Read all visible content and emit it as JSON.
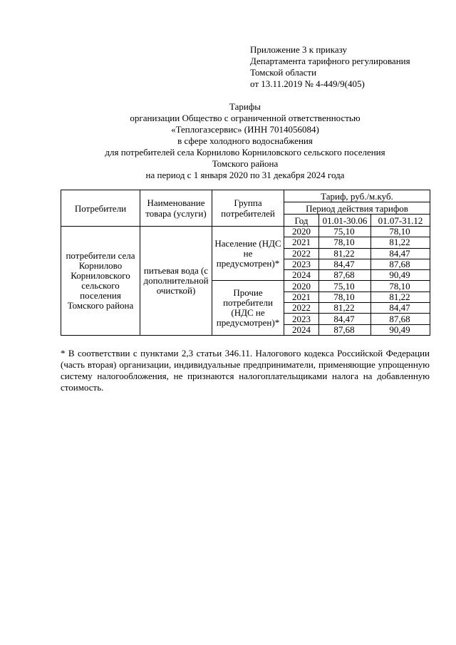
{
  "appendix": [
    "Приложение 3 к приказу",
    "Департамента тарифного регулирования",
    "Томской области",
    "от 13.11.2019 № 4-449/9(405)"
  ],
  "title": [
    "Тарифы",
    "организации Общество с ограниченной ответственностью",
    "«Теплогазсервис» (ИНН 7014056084)",
    "в сфере холодного водоснабжения",
    "для потребителей села Корнилово Корниловского сельского поселения",
    "Томского района",
    "на период с 1 января 2020 по 31 декабря 2024 года"
  ],
  "table": {
    "headers": {
      "consumers": "Потребители",
      "product": "Наименование товара (услуги)",
      "group": "Группа потребителей",
      "tariff": "Тариф, руб./м.куб.",
      "period": "Период действия тарифов",
      "year": "Год",
      "h1": "01.01-30.06",
      "h2": "01.07-31.12"
    },
    "consumers": "потребители села Корнилово Корниловского сельского поселения Томского района",
    "product": "питьевая вода (с дополнительной очисткой)",
    "groups": [
      {
        "name": "Население (НДС не предусмотрен)*",
        "rows": [
          [
            "2020",
            "75,10",
            "78,10"
          ],
          [
            "2021",
            "78,10",
            "81,22"
          ],
          [
            "2022",
            "81,22",
            "84,47"
          ],
          [
            "2023",
            "84,47",
            "87,68"
          ],
          [
            "2024",
            "87,68",
            "90,49"
          ]
        ]
      },
      {
        "name": "Прочие потребители (НДС не предусмотрен)*",
        "rows": [
          [
            "2020",
            "75,10",
            "78,10"
          ],
          [
            "2021",
            "78,10",
            "81,22"
          ],
          [
            "2022",
            "81,22",
            "84,47"
          ],
          [
            "2023",
            "84,47",
            "87,68"
          ],
          [
            "2024",
            "87,68",
            "90,49"
          ]
        ]
      }
    ]
  },
  "footnote": "* В соответствии с пунктами 2,3 статьи 346.11. Налогового кодекса Российской Федерации (часть вторая) организации, индивидуальные предприниматели, применяющие упрощенную систему налогообложения, не признаются налогоплательщиками налога на добавленную стоимость."
}
